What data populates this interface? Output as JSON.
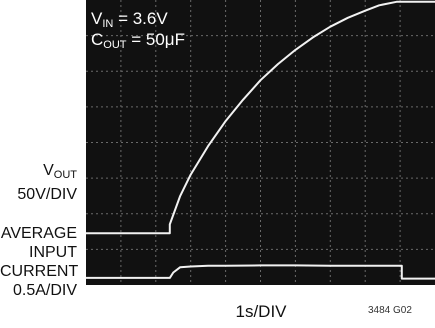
{
  "chart_data": {
    "type": "line",
    "background": "#111111",
    "trace_color": "#f2f2f2",
    "grid_color": "#6a6a6a",
    "grid": true,
    "annotation": {
      "vin_main": "V",
      "vin_sub": "IN",
      "vin_value": " = 3.6V",
      "cout_main": "C",
      "cout_sub": "OUT",
      "cout_value": " = 50μF"
    },
    "y_label_vout": {
      "main": "V",
      "sub": "OUT",
      "scale": "50V/DIV"
    },
    "y_label_current": [
      "AVERAGE",
      "INPUT",
      "CURRENT",
      "0.5A/DIV"
    ],
    "xlabel": "1s/DIV",
    "figure_id": "3484 G02",
    "divisions": {
      "x": 10,
      "y": 8
    },
    "series": [
      {
        "t_div": [
          0,
          2.4,
          2.4,
          2.7,
          3.0,
          3.5,
          4.0,
          4.5,
          5.0,
          5.5,
          6.0,
          6.5,
          7.0,
          7.5,
          8.0,
          8.4,
          8.9,
          9.3,
          10
        ],
        "div": [
          1.45,
          1.45,
          1.7,
          2.5,
          3.1,
          3.9,
          4.6,
          5.2,
          5.75,
          6.2,
          6.6,
          6.95,
          7.25,
          7.5,
          7.7,
          7.85,
          7.95,
          7.95,
          7.95
        ]
      },
      {
        "t_div": [
          0,
          2.4,
          2.5,
          2.7,
          3.0,
          3.5,
          4.0,
          5.0,
          6.0,
          7.0,
          8.0,
          8.9,
          9.05,
          9.05,
          10
        ],
        "div": [
          0.2,
          0.2,
          0.35,
          0.5,
          0.52,
          0.54,
          0.54,
          0.55,
          0.55,
          0.54,
          0.54,
          0.54,
          0.54,
          0.18,
          0.18
        ]
      }
    ]
  }
}
